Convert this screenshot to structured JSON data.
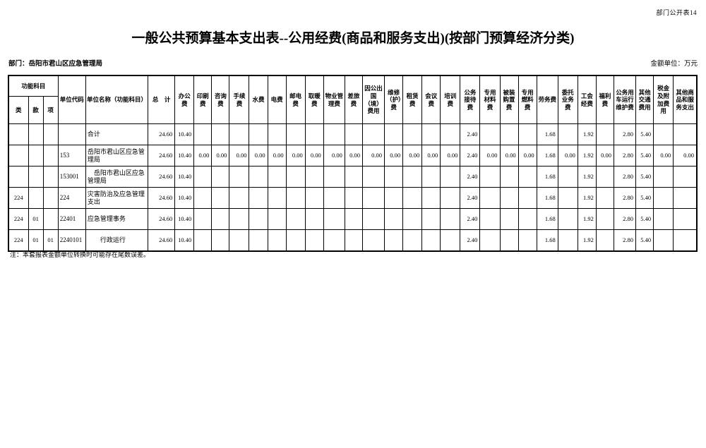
{
  "page": {
    "doc_label": "部门公开表14",
    "title": "一般公共预算基本支出表--公用经费(商品和服务支出)(按部门预算经济分类)",
    "department_label": "部门：岳阳市君山区应急管理局",
    "unit_label": "金额单位：万元",
    "note": "注：本套报表金额单位转换时可能存在尾数误差。"
  },
  "table": {
    "header": {
      "func_group": "功能科目",
      "func_cols": [
        "类",
        "款",
        "项"
      ],
      "unit_code": "单位代码",
      "unit_name": "单位名称（功能科目）",
      "total": "总　计",
      "fee_cols": [
        "办公费",
        "印刷费",
        "咨询费",
        "手续费",
        "水费",
        "电费",
        "邮电费",
        "取暖费",
        "物业管理费",
        "差旅费",
        "因公出国（境）费用",
        "维修（护）费",
        "租赁费",
        "会议费",
        "培训费",
        "公务接待费",
        "专用材料费",
        "被装购置费",
        "专用燃料费",
        "劳务费",
        "委托业务费",
        "工会经费",
        "福利费",
        "公务用车运行维护费",
        "其他交通费用",
        "税金及附加费用",
        "其他商品和服务支出"
      ]
    },
    "rows": [
      {
        "lei": "",
        "kuan": "",
        "xiang": "",
        "code": "",
        "name": "合计",
        "values": [
          "24.60",
          "10.40",
          "",
          "",
          "",
          "",
          "",
          "",
          "",
          "",
          "",
          "",
          "",
          "",
          "",
          "",
          "2.40",
          "",
          "",
          "",
          "1.68",
          "",
          "1.92",
          "",
          "2.80",
          "5.40",
          "",
          ""
        ]
      },
      {
        "lei": "",
        "kuan": "",
        "xiang": "",
        "code": "153",
        "name": "岳阳市君山区应急管理局",
        "values": [
          "24.60",
          "10.40",
          "0.00",
          "0.00",
          "0.00",
          "0.00",
          "0.00",
          "0.00",
          "0.00",
          "0.00",
          "0.00",
          "0.00",
          "0.00",
          "0.00",
          "0.00",
          "0.00",
          "2.40",
          "0.00",
          "0.00",
          "0.00",
          "1.68",
          "0.00",
          "1.92",
          "0.00",
          "2.80",
          "5.40",
          "0.00",
          "0.00"
        ]
      },
      {
        "lei": "",
        "kuan": "",
        "xiang": "",
        "code": "153001",
        "name": "　岳阳市君山区应急管理局",
        "values": [
          "24.60",
          "10.40",
          "",
          "",
          "",
          "",
          "",
          "",
          "",
          "",
          "",
          "",
          "",
          "",
          "",
          "",
          "2.40",
          "",
          "",
          "",
          "1.68",
          "",
          "1.92",
          "",
          "2.80",
          "5.40",
          "",
          ""
        ]
      },
      {
        "lei": "224",
        "kuan": "",
        "xiang": "",
        "code": "224",
        "name": "灾害防治及应急管理支出",
        "values": [
          "24.60",
          "10.40",
          "",
          "",
          "",
          "",
          "",
          "",
          "",
          "",
          "",
          "",
          "",
          "",
          "",
          "",
          "2.40",
          "",
          "",
          "",
          "1.68",
          "",
          "1.92",
          "",
          "2.80",
          "5.40",
          "",
          ""
        ]
      },
      {
        "lei": "224",
        "kuan": "01",
        "xiang": "",
        "code": "22401",
        "name": "应急管理事务",
        "values": [
          "24.60",
          "10.40",
          "",
          "",
          "",
          "",
          "",
          "",
          "",
          "",
          "",
          "",
          "",
          "",
          "",
          "",
          "2.40",
          "",
          "",
          "",
          "1.68",
          "",
          "1.92",
          "",
          "2.80",
          "5.40",
          "",
          ""
        ]
      },
      {
        "lei": "224",
        "kuan": "01",
        "xiang": "01",
        "code": "2240101",
        "name": "　　行政运行",
        "values": [
          "24.60",
          "10.40",
          "",
          "",
          "",
          "",
          "",
          "",
          "",
          "",
          "",
          "",
          "",
          "",
          "",
          "",
          "2.40",
          "",
          "",
          "",
          "1.68",
          "",
          "1.92",
          "",
          "2.80",
          "5.40",
          "",
          ""
        ]
      }
    ]
  }
}
